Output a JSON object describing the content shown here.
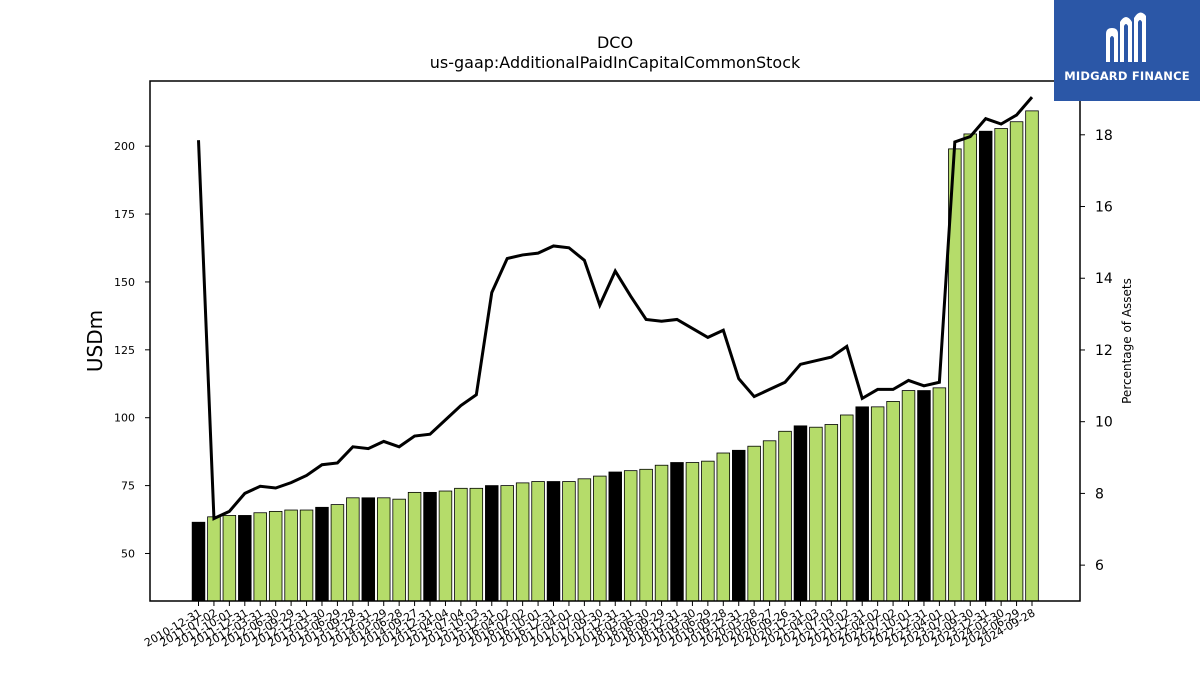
{
  "title": "DCO",
  "subtitle": "us-gaap:AdditionalPaidInCapitalCommonStock",
  "logo": {
    "text": "MIDGARD FINANCE",
    "bg": "#2b57a7"
  },
  "chart_data": {
    "type": "bar",
    "title": "DCO",
    "subtitle": "us-gaap:AdditionalPaidInCapitalCommonStock",
    "ylabel": "USDm",
    "y2label": "Percentage of Assets",
    "ylim": [
      32.5,
      224
    ],
    "y2lim": [
      5,
      19.5
    ],
    "yticks": [
      50,
      75,
      100,
      125,
      150,
      175,
      200
    ],
    "y2ticks": [
      6,
      8,
      10,
      12,
      14,
      16,
      18
    ],
    "colors": {
      "bar": "#b5dc6a",
      "bar_highlight": "#000000",
      "line": "#000000"
    },
    "categories": [
      "2010-12-31",
      "2011-07-02",
      "2011-10-01",
      "2011-12-31",
      "2012-03-31",
      "2012-06-30",
      "2012-09-29",
      "2012-12-31",
      "2013-03-30",
      "2013-06-29",
      "2013-09-28",
      "2013-12-31",
      "2014-03-29",
      "2014-06-28",
      "2014-09-27",
      "2014-12-31",
      "2015-04-04",
      "2015-07-04",
      "2015-10-03",
      "2015-12-31",
      "2016-04-02",
      "2016-07-02",
      "2016-10-01",
      "2016-12-31",
      "2017-04-01",
      "2017-07-01",
      "2017-09-30",
      "2017-12-31",
      "2018-03-31",
      "2018-06-30",
      "2018-09-29",
      "2018-12-31",
      "2019-03-30",
      "2019-06-29",
      "2019-09-28",
      "2019-12-31",
      "2020-03-28",
      "2020-06-27",
      "2020-09-26",
      "2020-12-31",
      "2021-04-03",
      "2021-07-03",
      "2021-10-02",
      "2021-12-31",
      "2022-04-02",
      "2022-07-02",
      "2022-10-01",
      "2022-12-31",
      "2023-04-01",
      "2023-07-01",
      "2023-09-30",
      "2023-12-31",
      "2024-03-30",
      "2024-06-29",
      "2024-09-28"
    ],
    "series": [
      {
        "values": [
          61.5,
          63.5,
          64,
          64,
          65,
          65.5,
          66,
          66,
          67,
          68,
          70.5,
          70.5,
          70.5,
          70,
          72.5,
          72.5,
          73,
          74,
          74,
          75,
          75,
          76,
          76.5,
          76.5,
          76.5,
          77.5,
          78.5,
          80,
          80.5,
          81,
          82.5,
          83.5,
          83.5,
          84,
          87,
          88,
          89.5,
          91.5,
          95,
          97,
          96.5,
          97.5,
          101,
          104,
          104,
          106,
          110,
          110,
          111,
          199,
          204.5,
          205.5,
          206.5,
          209,
          213
        ]
      },
      {
        "type": "line",
        "axis": "right",
        "values": [
          17.85,
          7.3,
          7.5,
          8,
          8.2,
          8.15,
          8.3,
          8.5,
          8.8,
          8.85,
          9.3,
          9.25,
          9.45,
          9.3,
          9.6,
          9.65,
          10.05,
          10.45,
          10.75,
          13.6,
          14.55,
          14.65,
          14.7,
          14.9,
          14.85,
          14.5,
          13.25,
          14.2,
          13.5,
          12.85,
          12.8,
          12.85,
          12.6,
          12.35,
          12.55,
          11.2,
          10.7,
          10.9,
          11.1,
          11.6,
          11.7,
          11.8,
          12.1,
          10.65,
          10.9,
          10.9,
          11.15,
          11.0,
          11.1,
          17.8,
          17.95,
          18.45,
          18.3,
          18.55,
          19.05
        ]
      }
    ],
    "highlight_indices": [
      0,
      3,
      8,
      11,
      15,
      19,
      23,
      27,
      31,
      35,
      39,
      43,
      47,
      51
    ],
    "legend": "none",
    "grid": false
  }
}
